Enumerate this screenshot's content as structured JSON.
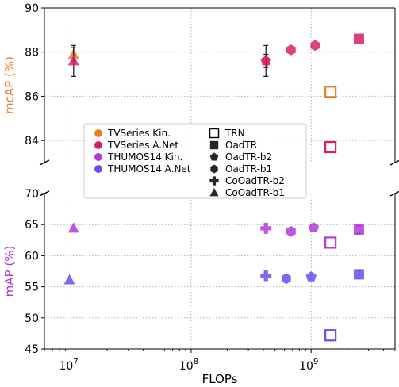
{
  "chart_data": {
    "type": "scatter",
    "xlabel": "FLOPs",
    "xscale": "log",
    "xlim": [
      6000000,
      5000000000
    ],
    "x_ticks": [
      {
        "value": 10000000,
        "mantissa": "10",
        "exp": "7"
      },
      {
        "value": 100000000,
        "mantissa": "10",
        "exp": "8"
      },
      {
        "value": 1000000000,
        "mantissa": "10",
        "exp": "9"
      }
    ],
    "grid": true,
    "colors": {
      "tvseries_kin": "#f07c2a",
      "tvseries_anet": "#d61f68",
      "thumos_kin": "#b23ad9",
      "thumos_anet": "#6a4ff0"
    },
    "panels": [
      {
        "id": "top",
        "ylabel": "mcAP (%)",
        "ylabel_color": "#f07c2a",
        "ylim": [
          83,
          90
        ],
        "yticks": [
          84,
          86,
          88,
          90
        ],
        "series": [
          {
            "name": "TVSeries Kin.",
            "color": "#f07c2a",
            "points": [
              {
                "model": "TRN",
                "x": 1450000000,
                "y": 86.2
              },
              {
                "model": "OadTR-b2",
                "x": 420000000,
                "y": 87.6,
                "err": 0.3
              },
              {
                "model": "CoOadTR-b1",
                "x": 10500000,
                "y": 87.9,
                "err": 0.3
              }
            ]
          },
          {
            "name": "TVSeries A.Net",
            "color": "#d61f68",
            "points": [
              {
                "model": "TRN",
                "x": 1450000000,
                "y": 83.7
              },
              {
                "model": "OadTR",
                "x": 2500000000,
                "y": 88.6
              },
              {
                "model": "OadTR-b2",
                "x": 420000000,
                "y": 87.6,
                "err": 0.7
              },
              {
                "model": "OadTR-b1",
                "x": 680000000,
                "y": 88.1
              },
              {
                "model": "OadTR-b1",
                "x": 1080000000,
                "y": 88.3
              },
              {
                "model": "CoOadTR-b1",
                "x": 10500000,
                "y": 87.6,
                "err": 0.7
              }
            ]
          }
        ]
      },
      {
        "id": "bottom",
        "ylabel": "mAP (%)",
        "ylabel_color": "#b23ad9",
        "ylim": [
          45,
          70
        ],
        "yticks": [
          45,
          50,
          55,
          60,
          65,
          70
        ],
        "series": [
          {
            "name": "THUMOS14 Kin.",
            "color": "#b23ad9",
            "points": [
              {
                "model": "TRN",
                "x": 1450000000,
                "y": 62.1
              },
              {
                "model": "OadTR",
                "x": 2500000000,
                "y": 64.2,
                "err": 0.6
              },
              {
                "model": "CoOadTR-b2",
                "x": 420000000,
                "y": 64.4
              },
              {
                "model": "OadTR-b1",
                "x": 680000000,
                "y": 63.9
              },
              {
                "model": "OadTR-b2",
                "x": 1050000000,
                "y": 64.5
              },
              {
                "model": "CoOadTR-b1",
                "x": 10500000,
                "y": 64.4
              }
            ]
          },
          {
            "name": "THUMOS14 A.Net",
            "color": "#6a4ff0",
            "points": [
              {
                "model": "TRN",
                "x": 1450000000,
                "y": 47.2
              },
              {
                "model": "OadTR",
                "x": 2500000000,
                "y": 57.0,
                "err": 0.6
              },
              {
                "model": "CoOadTR-b2",
                "x": 420000000,
                "y": 56.8
              },
              {
                "model": "OadTR-b1",
                "x": 620000000,
                "y": 56.3
              },
              {
                "model": "OadTR-b2",
                "x": 1000000000,
                "y": 56.6
              },
              {
                "model": "CoOadTR-b1",
                "x": 9700000,
                "y": 56.1
              }
            ]
          }
        ]
      }
    ],
    "legend": {
      "position": "center-left",
      "datasets": [
        {
          "label": "TVSeries Kin.",
          "color": "#f07c2a"
        },
        {
          "label": "TVSeries A.Net",
          "color": "#d61f68"
        },
        {
          "label": "THUMOS14 Kin.",
          "color": "#b23ad9"
        },
        {
          "label": "THUMOS14 A.Net",
          "color": "#6a4ff0"
        }
      ],
      "models": [
        {
          "label": "TRN",
          "marker": "hollow-square"
        },
        {
          "label": "OadTR",
          "marker": "square"
        },
        {
          "label": "OadTR-b2",
          "marker": "pentagon"
        },
        {
          "label": "OadTR-b1",
          "marker": "hexagon"
        },
        {
          "label": "CoOadTR-b2",
          "marker": "plus"
        },
        {
          "label": "CoOadTR-b1",
          "marker": "triangle"
        }
      ]
    }
  }
}
